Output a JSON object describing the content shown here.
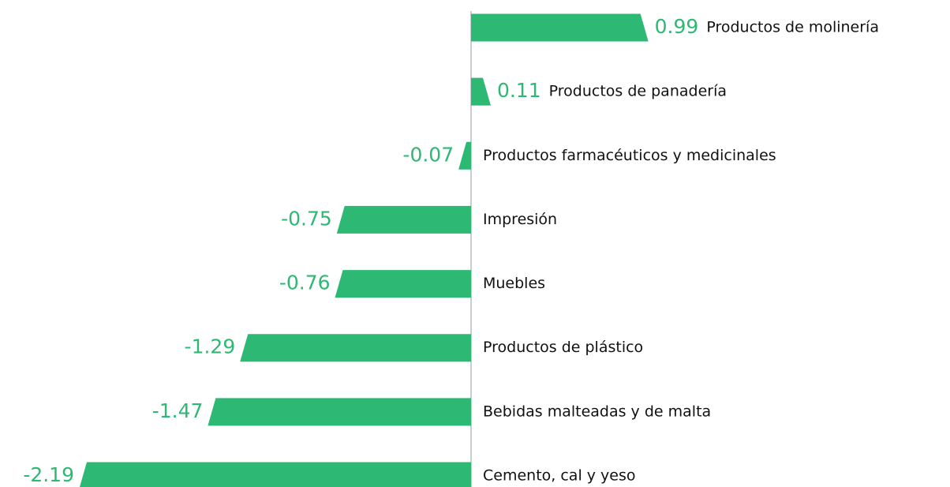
{
  "chart_data": {
    "type": "bar",
    "orientation": "horizontal",
    "color": "#2db874",
    "categories": [
      "Productos de molinería",
      "Productos de panadería",
      "Productos farmacéuticos y medicinales",
      "Impresión",
      "Muebles",
      "Productos de plástico",
      "Bebidas malteadas y de malta",
      "Cemento, cal y yeso"
    ],
    "values": [
      0.99,
      0.11,
      -0.07,
      -0.75,
      -0.76,
      -1.29,
      -1.47,
      -2.19
    ]
  }
}
